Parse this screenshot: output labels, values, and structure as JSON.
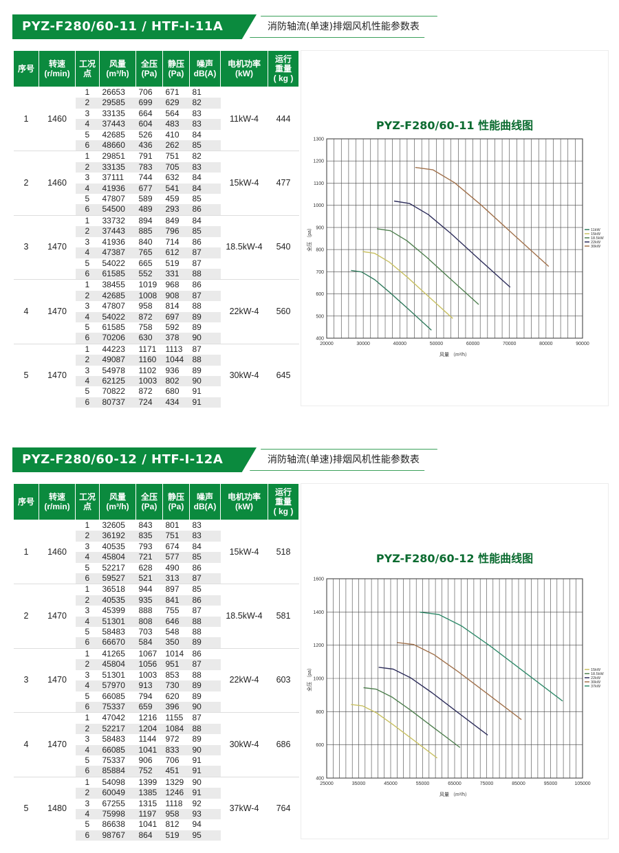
{
  "sections": [
    {
      "model": "PYZ-F280/60-11  /  HTF-I-11A",
      "desc": "消防轴流(单速)排烟风机性能参数表",
      "headers": [
        "序号",
        "转速\n(r/min)",
        "工况\n点",
        "风量\n(m³/h)",
        "全压\n(Pa)",
        "静压\n(Pa)",
        "噪声\ndB(A)",
        "电机功率\n(kW)",
        "运行\n重量\n( kg )"
      ],
      "groups": [
        {
          "no": "1",
          "speed": "1460",
          "power": "11kW-4",
          "weight": "444",
          "rows": [
            [
              "1",
              "26653",
              "706",
              "671",
              "81"
            ],
            [
              "2",
              "29585",
              "699",
              "629",
              "82"
            ],
            [
              "3",
              "33135",
              "664",
              "564",
              "83"
            ],
            [
              "4",
              "37443",
              "604",
              "483",
              "83"
            ],
            [
              "5",
              "42685",
              "526",
              "410",
              "84"
            ],
            [
              "6",
              "48660",
              "436",
              "262",
              "85"
            ]
          ]
        },
        {
          "no": "2",
          "speed": "1460",
          "power": "15kW-4",
          "weight": "477",
          "rows": [
            [
              "1",
              "29851",
              "791",
              "751",
              "82"
            ],
            [
              "2",
              "33135",
              "783",
              "705",
              "83"
            ],
            [
              "3",
              "37111",
              "744",
              "632",
              "84"
            ],
            [
              "4",
              "41936",
              "677",
              "541",
              "84"
            ],
            [
              "5",
              "47807",
              "589",
              "459",
              "85"
            ],
            [
              "6",
              "54500",
              "489",
              "293",
              "86"
            ]
          ]
        },
        {
          "no": "3",
          "speed": "1470",
          "power": "18.5kW-4",
          "weight": "540",
          "rows": [
            [
              "1",
              "33732",
              "894",
              "849",
              "84"
            ],
            [
              "2",
              "37443",
              "885",
              "796",
              "85"
            ],
            [
              "3",
              "41936",
              "840",
              "714",
              "86"
            ],
            [
              "4",
              "47387",
              "765",
              "612",
              "87"
            ],
            [
              "5",
              "54022",
              "665",
              "519",
              "87"
            ],
            [
              "6",
              "61585",
              "552",
              "331",
              "88"
            ]
          ]
        },
        {
          "no": "4",
          "speed": "1470",
          "power": "22kW-4",
          "weight": "560",
          "rows": [
            [
              "1",
              "38455",
              "1019",
              "968",
              "86"
            ],
            [
              "2",
              "42685",
              "1008",
              "908",
              "87"
            ],
            [
              "3",
              "47807",
              "958",
              "814",
              "88"
            ],
            [
              "4",
              "54022",
              "872",
              "697",
              "89"
            ],
            [
              "5",
              "61585",
              "758",
              "592",
              "89"
            ],
            [
              "6",
              "70206",
              "630",
              "378",
              "90"
            ]
          ]
        },
        {
          "no": "5",
          "speed": "1470",
          "power": "30kW-4",
          "weight": "645",
          "rows": [
            [
              "1",
              "44223",
              "1171",
              "1113",
              "87"
            ],
            [
              "2",
              "49087",
              "1160",
              "1044",
              "88"
            ],
            [
              "3",
              "54978",
              "1102",
              "936",
              "89"
            ],
            [
              "4",
              "62125",
              "1003",
              "802",
              "90"
            ],
            [
              "5",
              "70822",
              "872",
              "680",
              "91"
            ],
            [
              "6",
              "80737",
              "724",
              "434",
              "91"
            ]
          ]
        }
      ],
      "chart_title": "PYZ-F280/60-11 性能曲线图"
    },
    {
      "model": "PYZ-F280/60-12  /  HTF-I-12A",
      "desc": "消防轴流(单速)排烟风机性能参数表",
      "headers": [
        "序号",
        "转速\n(r/min)",
        "工况\n点",
        "风量\n(m³/h)",
        "全压\n(Pa)",
        "静压\n(Pa)",
        "噪声\ndB(A)",
        "电机功率\n(kW)",
        "运行\n重量\n( kg )"
      ],
      "groups": [
        {
          "no": "1",
          "speed": "1460",
          "power": "15kW-4",
          "weight": "518",
          "rows": [
            [
              "1",
              "32605",
              "843",
              "801",
              "83"
            ],
            [
              "2",
              "36192",
              "835",
              "751",
              "83"
            ],
            [
              "3",
              "40535",
              "793",
              "674",
              "84"
            ],
            [
              "4",
              "45804",
              "721",
              "577",
              "85"
            ],
            [
              "5",
              "52217",
              "628",
              "490",
              "86"
            ],
            [
              "6",
              "59527",
              "521",
              "313",
              "87"
            ]
          ]
        },
        {
          "no": "2",
          "speed": "1470",
          "power": "18.5kW-4",
          "weight": "581",
          "rows": [
            [
              "1",
              "36518",
              "944",
              "897",
              "85"
            ],
            [
              "2",
              "40535",
              "935",
              "841",
              "86"
            ],
            [
              "3",
              "45399",
              "888",
              "755",
              "87"
            ],
            [
              "4",
              "51301",
              "808",
              "646",
              "88"
            ],
            [
              "5",
              "58483",
              "703",
              "548",
              "88"
            ],
            [
              "6",
              "66670",
              "584",
              "350",
              "89"
            ]
          ]
        },
        {
          "no": "3",
          "speed": "1470",
          "power": "22kW-4",
          "weight": "603",
          "rows": [
            [
              "1",
              "41265",
              "1067",
              "1014",
              "86"
            ],
            [
              "2",
              "45804",
              "1056",
              "951",
              "87"
            ],
            [
              "3",
              "51301",
              "1003",
              "853",
              "88"
            ],
            [
              "4",
              "57970",
              "913",
              "730",
              "89"
            ],
            [
              "5",
              "66085",
              "794",
              "620",
              "89"
            ],
            [
              "6",
              "75337",
              "659",
              "396",
              "90"
            ]
          ]
        },
        {
          "no": "4",
          "speed": "1470",
          "power": "30kW-4",
          "weight": "686",
          "rows": [
            [
              "1",
              "47042",
              "1216",
              "1155",
              "87"
            ],
            [
              "2",
              "52217",
              "1204",
              "1084",
              "88"
            ],
            [
              "3",
              "58483",
              "1144",
              "972",
              "89"
            ],
            [
              "4",
              "66085",
              "1041",
              "833",
              "90"
            ],
            [
              "5",
              "75337",
              "906",
              "706",
              "91"
            ],
            [
              "6",
              "85884",
              "752",
              "451",
              "91"
            ]
          ]
        },
        {
          "no": "5",
          "speed": "1480",
          "power": "37kW-4",
          "weight": "764",
          "rows": [
            [
              "1",
              "54098",
              "1399",
              "1329",
              "90"
            ],
            [
              "2",
              "60049",
              "1385",
              "1246",
              "91"
            ],
            [
              "3",
              "67255",
              "1315",
              "1118",
              "92"
            ],
            [
              "4",
              "75998",
              "1197",
              "958",
              "93"
            ],
            [
              "5",
              "86638",
              "1041",
              "812",
              "94"
            ],
            [
              "6",
              "98767",
              "864",
              "519",
              "95"
            ]
          ]
        }
      ],
      "chart_title": "PYZ-F280/60-12 性能曲线图"
    }
  ],
  "chart_data": [
    {
      "type": "line",
      "title": "PYZ-F280/60-11 性能曲线图",
      "xlabel": "风量 （m³/h）",
      "ylabel": "全压 （pa）",
      "xlim": [
        20000,
        90000
      ],
      "ylim": [
        400,
        1300
      ],
      "xticks": [
        "20000",
        "30000",
        "40000",
        "50000",
        "60000",
        "70000",
        "80000",
        "90000"
      ],
      "yticks": [
        "400",
        "500",
        "600",
        "700",
        "800",
        "900",
        "1000",
        "1100",
        "1200",
        "1300"
      ],
      "grid": true,
      "legend_position": "right",
      "series": [
        {
          "name": "11kW",
          "color": "#2f7a5c",
          "x": [
            26653,
            29585,
            33135,
            37443,
            42685,
            48660
          ],
          "y": [
            706,
            699,
            664,
            604,
            526,
            436
          ]
        },
        {
          "name": "15kW",
          "color": "#c8c060",
          "x": [
            29851,
            33135,
            37111,
            41936,
            47807,
            54500
          ],
          "y": [
            791,
            783,
            744,
            677,
            589,
            489
          ]
        },
        {
          "name": "18.5kW",
          "color": "#4e7f4e",
          "x": [
            33732,
            37443,
            41936,
            47387,
            54022,
            61585
          ],
          "y": [
            894,
            885,
            840,
            765,
            665,
            552
          ]
        },
        {
          "name": "22kW",
          "color": "#2c2c5a",
          "x": [
            38455,
            42685,
            47807,
            54022,
            61585,
            70206
          ],
          "y": [
            1019,
            1008,
            958,
            872,
            758,
            630
          ]
        },
        {
          "name": "30kW",
          "color": "#a0704a",
          "x": [
            44223,
            49087,
            54978,
            62125,
            70822,
            80737
          ],
          "y": [
            1171,
            1160,
            1102,
            1003,
            872,
            724
          ]
        }
      ]
    },
    {
      "type": "line",
      "title": "PYZ-F280/60-12 性能曲线图",
      "xlabel": "风量 （m³/h）",
      "ylabel": "全压 （pa）",
      "xlim": [
        25000,
        105000
      ],
      "ylim": [
        400,
        1600
      ],
      "xticks": [
        "25000",
        "35000",
        "45000",
        "55000",
        "65000",
        "75000",
        "85000",
        "95000",
        "105000"
      ],
      "yticks": [
        "400",
        "600",
        "800",
        "1000",
        "1200",
        "1400",
        "1600"
      ],
      "grid": true,
      "legend_position": "right",
      "series": [
        {
          "name": "15kW",
          "color": "#c8c060",
          "x": [
            32605,
            36192,
            40535,
            45804,
            52217,
            59527
          ],
          "y": [
            843,
            835,
            793,
            721,
            628,
            521
          ]
        },
        {
          "name": "18.5kW",
          "color": "#4e7f4e",
          "x": [
            36518,
            40535,
            45399,
            51301,
            58483,
            66670
          ],
          "y": [
            944,
            935,
            888,
            808,
            703,
            584
          ]
        },
        {
          "name": "22kW",
          "color": "#2c2c5a",
          "x": [
            41265,
            45804,
            51301,
            57970,
            66085,
            75337
          ],
          "y": [
            1067,
            1056,
            1003,
            913,
            794,
            659
          ]
        },
        {
          "name": "30kW",
          "color": "#a0704a",
          "x": [
            47042,
            52217,
            58483,
            66085,
            75337,
            85884
          ],
          "y": [
            1216,
            1204,
            1144,
            1041,
            906,
            752
          ]
        },
        {
          "name": "37kW",
          "color": "#2f8a6a",
          "x": [
            54098,
            60049,
            67255,
            75998,
            86638,
            98767
          ],
          "y": [
            1399,
            1385,
            1315,
            1197,
            1041,
            864
          ]
        }
      ]
    }
  ]
}
